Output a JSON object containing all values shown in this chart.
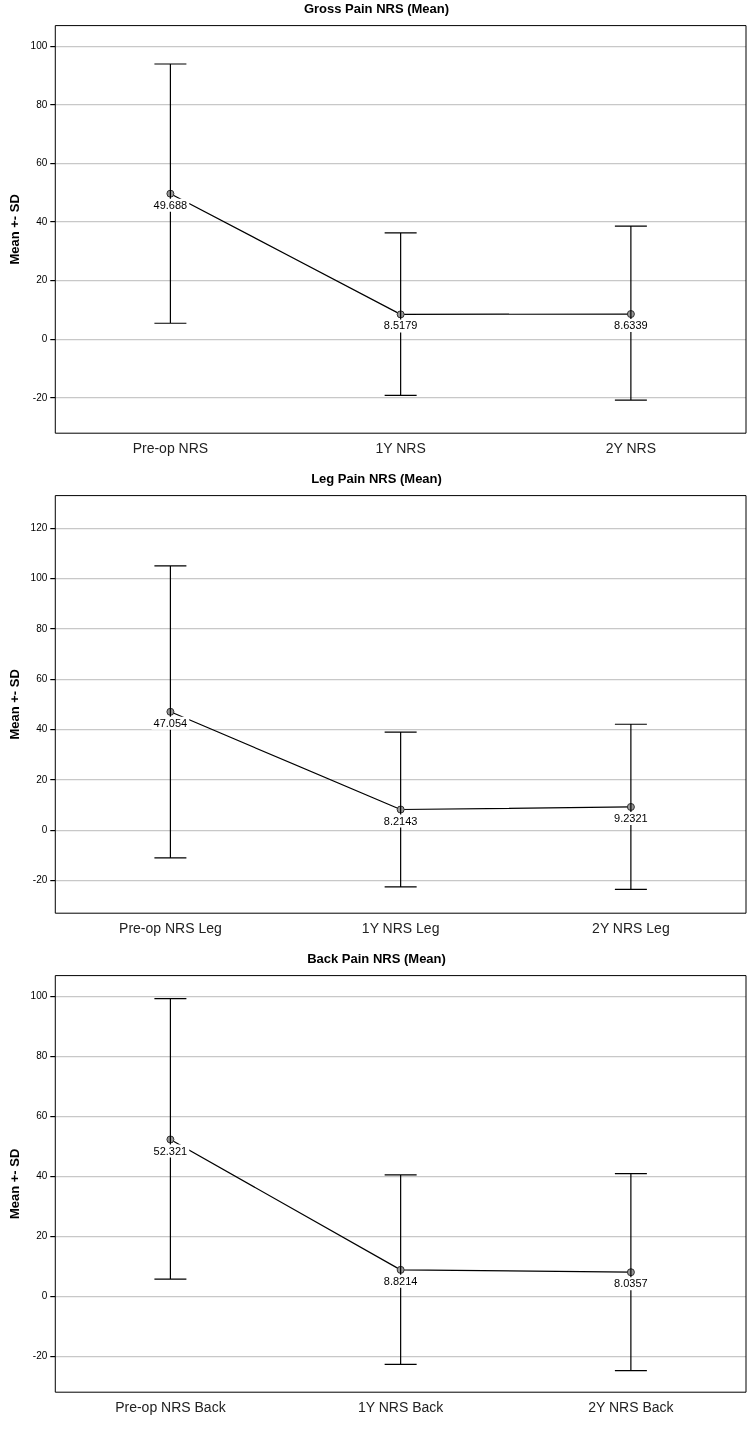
{
  "chart_data": [
    {
      "type": "line",
      "title": "Gross Pain NRS (Mean)",
      "ylabel": "Mean +- SD",
      "categories": [
        "Pre-op NRS",
        "1Y NRS",
        "2Y NRS"
      ],
      "values": [
        49.688,
        8.5179,
        8.6339
      ],
      "errors": [
        [
          5.5,
          93.9
        ],
        [
          -19.1,
          36.3
        ],
        [
          -20.7,
          38.6
        ]
      ],
      "color": "#000000",
      "ylim": [
        -32,
        107
      ],
      "yticks": [
        -20,
        0,
        20,
        40,
        60,
        80,
        100
      ],
      "grid": "y",
      "marker": "circle",
      "data_labels": true
    },
    {
      "type": "line",
      "title": "Leg Pain NRS (Mean)",
      "ylabel": "Mean +- SD",
      "categories": [
        "Pre-op NRS Leg",
        "1Y NRS Leg",
        "2Y NRS Leg"
      ],
      "values": [
        47.054,
        8.2143,
        9.2321
      ],
      "errors": [
        [
          -11.0,
          105.1
        ],
        [
          -22.5,
          39.0
        ],
        [
          -23.5,
          42.1
        ]
      ],
      "color": "#000000",
      "ylim": [
        -33,
        133
      ],
      "yticks": [
        -20,
        0,
        20,
        40,
        60,
        80,
        100,
        120
      ],
      "grid": "y",
      "marker": "circle",
      "data_labels": true
    },
    {
      "type": "line",
      "title": "Back Pain NRS (Mean)",
      "ylabel": "Mean +- SD",
      "categories": [
        "Pre-op NRS Back",
        "1Y NRS Back",
        "2Y NRS Back"
      ],
      "values": [
        52.321,
        8.8214,
        8.0357
      ],
      "errors": [
        [
          5.7,
          99.3
        ],
        [
          -22.7,
          40.5
        ],
        [
          -24.8,
          40.9
        ]
      ],
      "color": "#000000",
      "ylim": [
        -32,
        107
      ],
      "yticks": [
        -20,
        0,
        20,
        40,
        60,
        80,
        100
      ],
      "grid": "y",
      "marker": "circle",
      "data_labels": true
    }
  ]
}
